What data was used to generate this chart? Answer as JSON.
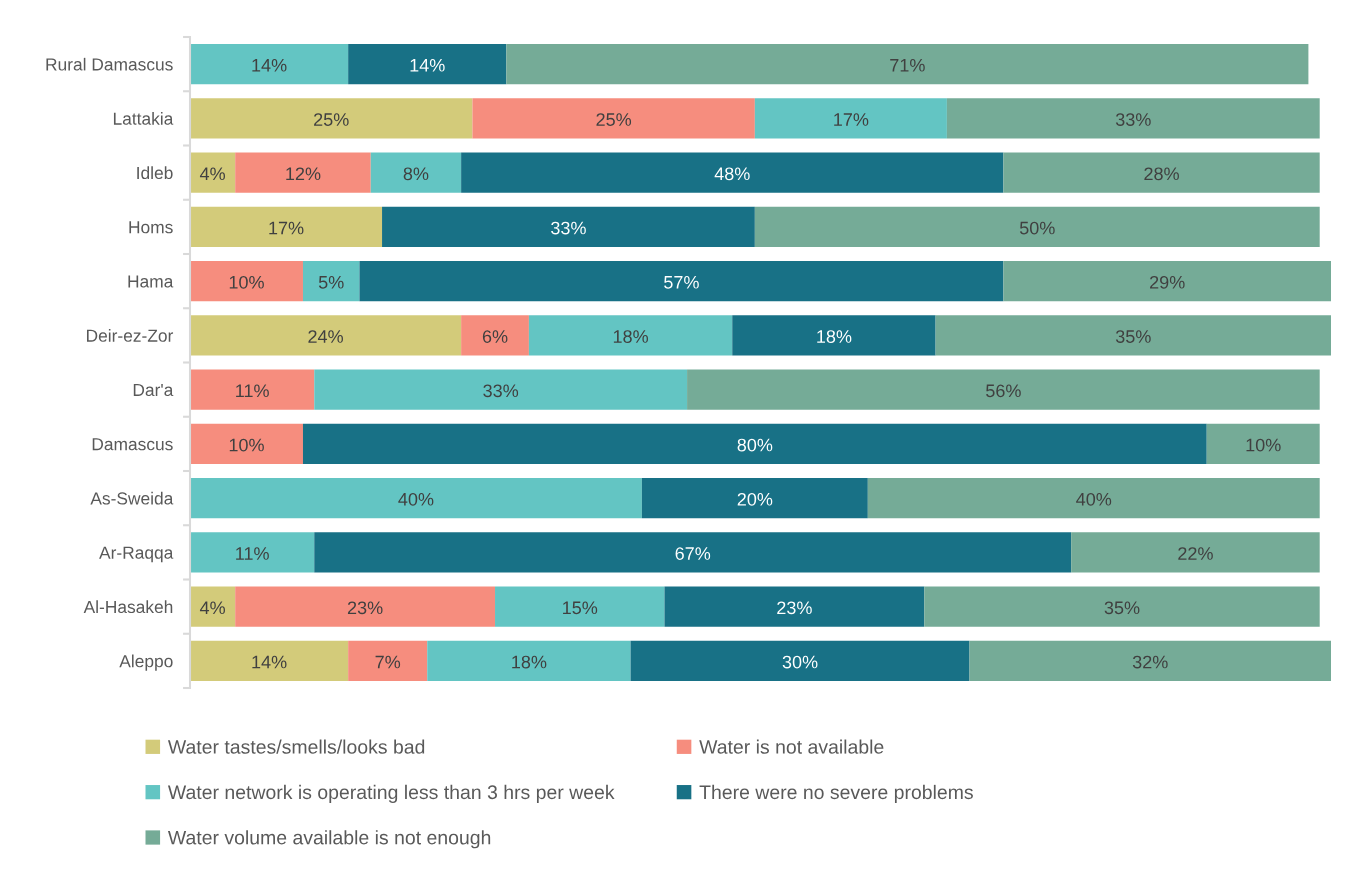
{
  "chart_data": {
    "type": "bar",
    "orientation": "horizontal",
    "stacked": true,
    "categories": [
      "Rural Damascus",
      "Lattakia",
      "Idleb",
      "Homs",
      "Hama",
      "Deir-ez-Zor",
      "Dar'a",
      "Damascus",
      "As-Sweida",
      "Ar-Raqqa",
      "Al-Hasakeh",
      "Aleppo"
    ],
    "series": [
      {
        "name": "Water tastes/smells/looks bad",
        "color": "#d3cb7a",
        "values": [
          null,
          25,
          4,
          17,
          null,
          24,
          null,
          null,
          null,
          null,
          4,
          14
        ],
        "value_labels": [
          null,
          "25%",
          "4%",
          "17%",
          null,
          "24%",
          null,
          null,
          null,
          null,
          "4%",
          "14%"
        ]
      },
      {
        "name": "Water is not available",
        "color": "#f68d7e",
        "values": [
          null,
          25,
          12,
          null,
          10,
          6,
          11,
          10,
          null,
          null,
          23,
          7
        ],
        "value_labels": [
          null,
          "25%",
          "12%",
          null,
          "10%",
          "6%",
          "11%",
          "10%",
          null,
          null,
          "23%",
          "7%"
        ]
      },
      {
        "name": "Water network is operating less than 3 hrs per week",
        "color": "#63c5c3",
        "values": [
          14,
          17,
          8,
          null,
          5,
          18,
          33,
          null,
          40,
          11,
          15,
          18
        ],
        "value_labels": [
          "14%",
          "17%",
          "8%",
          null,
          "5%",
          "18%",
          "33%",
          null,
          "40%",
          "11%",
          "15%",
          "18%"
        ]
      },
      {
        "name": "There were no severe problems",
        "color": "#187186",
        "values": [
          14,
          null,
          48,
          33,
          57,
          18,
          null,
          80,
          20,
          67,
          23,
          30
        ],
        "value_labels": [
          "14%",
          null,
          "48%",
          "33%",
          "57%",
          "18%",
          null,
          "80%",
          "20%",
          "67%",
          "23%",
          "30%"
        ]
      },
      {
        "name": "Water volume available is not enough",
        "color": "#75ab97",
        "values": [
          71,
          33,
          28,
          50,
          29,
          35,
          56,
          10,
          40,
          22,
          35,
          32
        ],
        "value_labels": [
          "71%",
          "33%",
          "28%",
          "50%",
          "29%",
          "35%",
          "56%",
          "10%",
          "40%",
          "22%",
          "35%",
          "32%"
        ]
      }
    ],
    "xlim": [
      0,
      101
    ],
    "tick_labels": "y",
    "legend": "bottom"
  }
}
